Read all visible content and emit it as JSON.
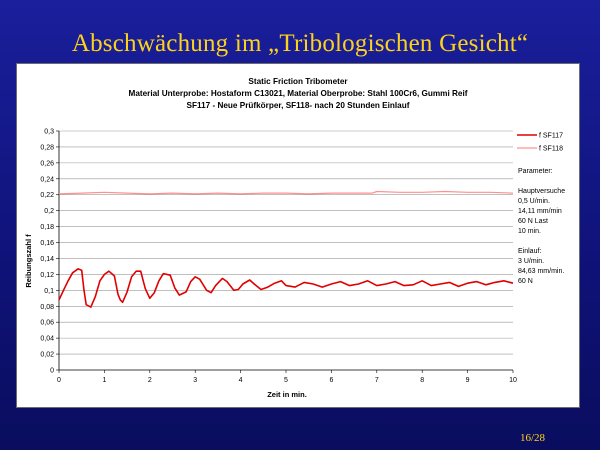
{
  "slide": {
    "title": "Abschwächung im „Tribologischen Gesicht“",
    "page_number": "16/28"
  },
  "chart_data": {
    "type": "line",
    "title": "Static Friction Tribometer",
    "subtitle_lines": [
      "Material Unterprobe: Hostaform C13021, Material Oberprobe: Stahl 100Cr6, Gummi Reif",
      "SF117 - Neue Prüfkörper, SF118- nach 20 Stunden Einlauf"
    ],
    "xlabel": "Zeit in min.",
    "ylabel": "Reibungszahl f",
    "xlim": [
      0,
      10
    ],
    "ylim": [
      0,
      0.3
    ],
    "x_ticks": [
      0,
      1,
      2,
      3,
      4,
      5,
      6,
      7,
      8,
      9,
      10
    ],
    "x_tick_labels": [
      "0",
      "1",
      "2",
      "3",
      "4",
      "5",
      "6",
      "7",
      "8",
      "9",
      "10"
    ],
    "y_ticks": [
      0,
      0.02,
      0.04,
      0.06,
      0.08,
      0.1,
      0.12,
      0.14,
      0.16,
      0.18,
      0.2,
      0.22,
      0.24,
      0.26,
      0.28,
      0.3
    ],
    "y_tick_labels": [
      "0",
      "0,02",
      "0,04",
      "0,06",
      "0,08",
      "0,1",
      "0,12",
      "0,14",
      "0,16",
      "0,18",
      "0,2",
      "0,22",
      "0,24",
      "0,26",
      "0,28",
      "0,3"
    ],
    "grid": "horizontal",
    "legend_position": "right",
    "series": [
      {
        "name": "f SF117",
        "color": "#e00000",
        "x": [
          0,
          0.1,
          0.2,
          0.3,
          0.42,
          0.5,
          0.55,
          0.6,
          0.7,
          0.8,
          0.9,
          1.0,
          1.1,
          1.22,
          1.3,
          1.35,
          1.4,
          1.5,
          1.6,
          1.7,
          1.8,
          1.9,
          2.0,
          2.1,
          2.2,
          2.3,
          2.45,
          2.55,
          2.65,
          2.8,
          2.9,
          3.0,
          3.1,
          3.25,
          3.35,
          3.45,
          3.6,
          3.7,
          3.85,
          3.95,
          4.05,
          4.2,
          4.3,
          4.45,
          4.6,
          4.75,
          4.9,
          5.0,
          5.2,
          5.4,
          5.6,
          5.8,
          6.0,
          6.2,
          6.4,
          6.6,
          6.8,
          7.0,
          7.2,
          7.4,
          7.6,
          7.8,
          8.0,
          8.2,
          8.4,
          8.6,
          8.8,
          9.0,
          9.2,
          9.4,
          9.6,
          9.8,
          10.0
        ],
        "y": [
          0.088,
          0.1,
          0.112,
          0.122,
          0.127,
          0.125,
          0.1,
          0.082,
          0.079,
          0.092,
          0.112,
          0.12,
          0.124,
          0.118,
          0.095,
          0.088,
          0.085,
          0.098,
          0.117,
          0.124,
          0.124,
          0.102,
          0.09,
          0.097,
          0.112,
          0.121,
          0.119,
          0.103,
          0.094,
          0.098,
          0.111,
          0.117,
          0.114,
          0.1,
          0.097,
          0.106,
          0.115,
          0.111,
          0.1,
          0.101,
          0.108,
          0.113,
          0.108,
          0.101,
          0.104,
          0.109,
          0.112,
          0.106,
          0.104,
          0.11,
          0.108,
          0.104,
          0.108,
          0.111,
          0.106,
          0.108,
          0.112,
          0.106,
          0.108,
          0.111,
          0.106,
          0.107,
          0.112,
          0.106,
          0.108,
          0.11,
          0.105,
          0.109,
          0.111,
          0.107,
          0.11,
          0.112,
          0.109
        ]
      },
      {
        "name": "f SF118",
        "color": "#ff9090",
        "x": [
          0,
          0.5,
          1.0,
          1.5,
          2.0,
          2.5,
          3.0,
          3.5,
          4.0,
          4.5,
          5.0,
          5.5,
          6.0,
          6.5,
          6.9,
          7.0,
          7.5,
          8.0,
          8.5,
          9.0,
          9.5,
          10.0
        ],
        "y": [
          0.221,
          0.222,
          0.223,
          0.222,
          0.221,
          0.222,
          0.221,
          0.222,
          0.221,
          0.222,
          0.222,
          0.221,
          0.222,
          0.222,
          0.222,
          0.224,
          0.223,
          0.223,
          0.224,
          0.223,
          0.223,
          0.222
        ]
      }
    ],
    "annotations": [
      "Parameter:",
      "Hauptversuche",
      "0,5 U/min.",
      "14,11 mm/min",
      "60 N Last",
      "10 min.",
      "Einlauf:",
      "3 U/min.",
      "84,63 mm/min.",
      "60 N"
    ]
  }
}
